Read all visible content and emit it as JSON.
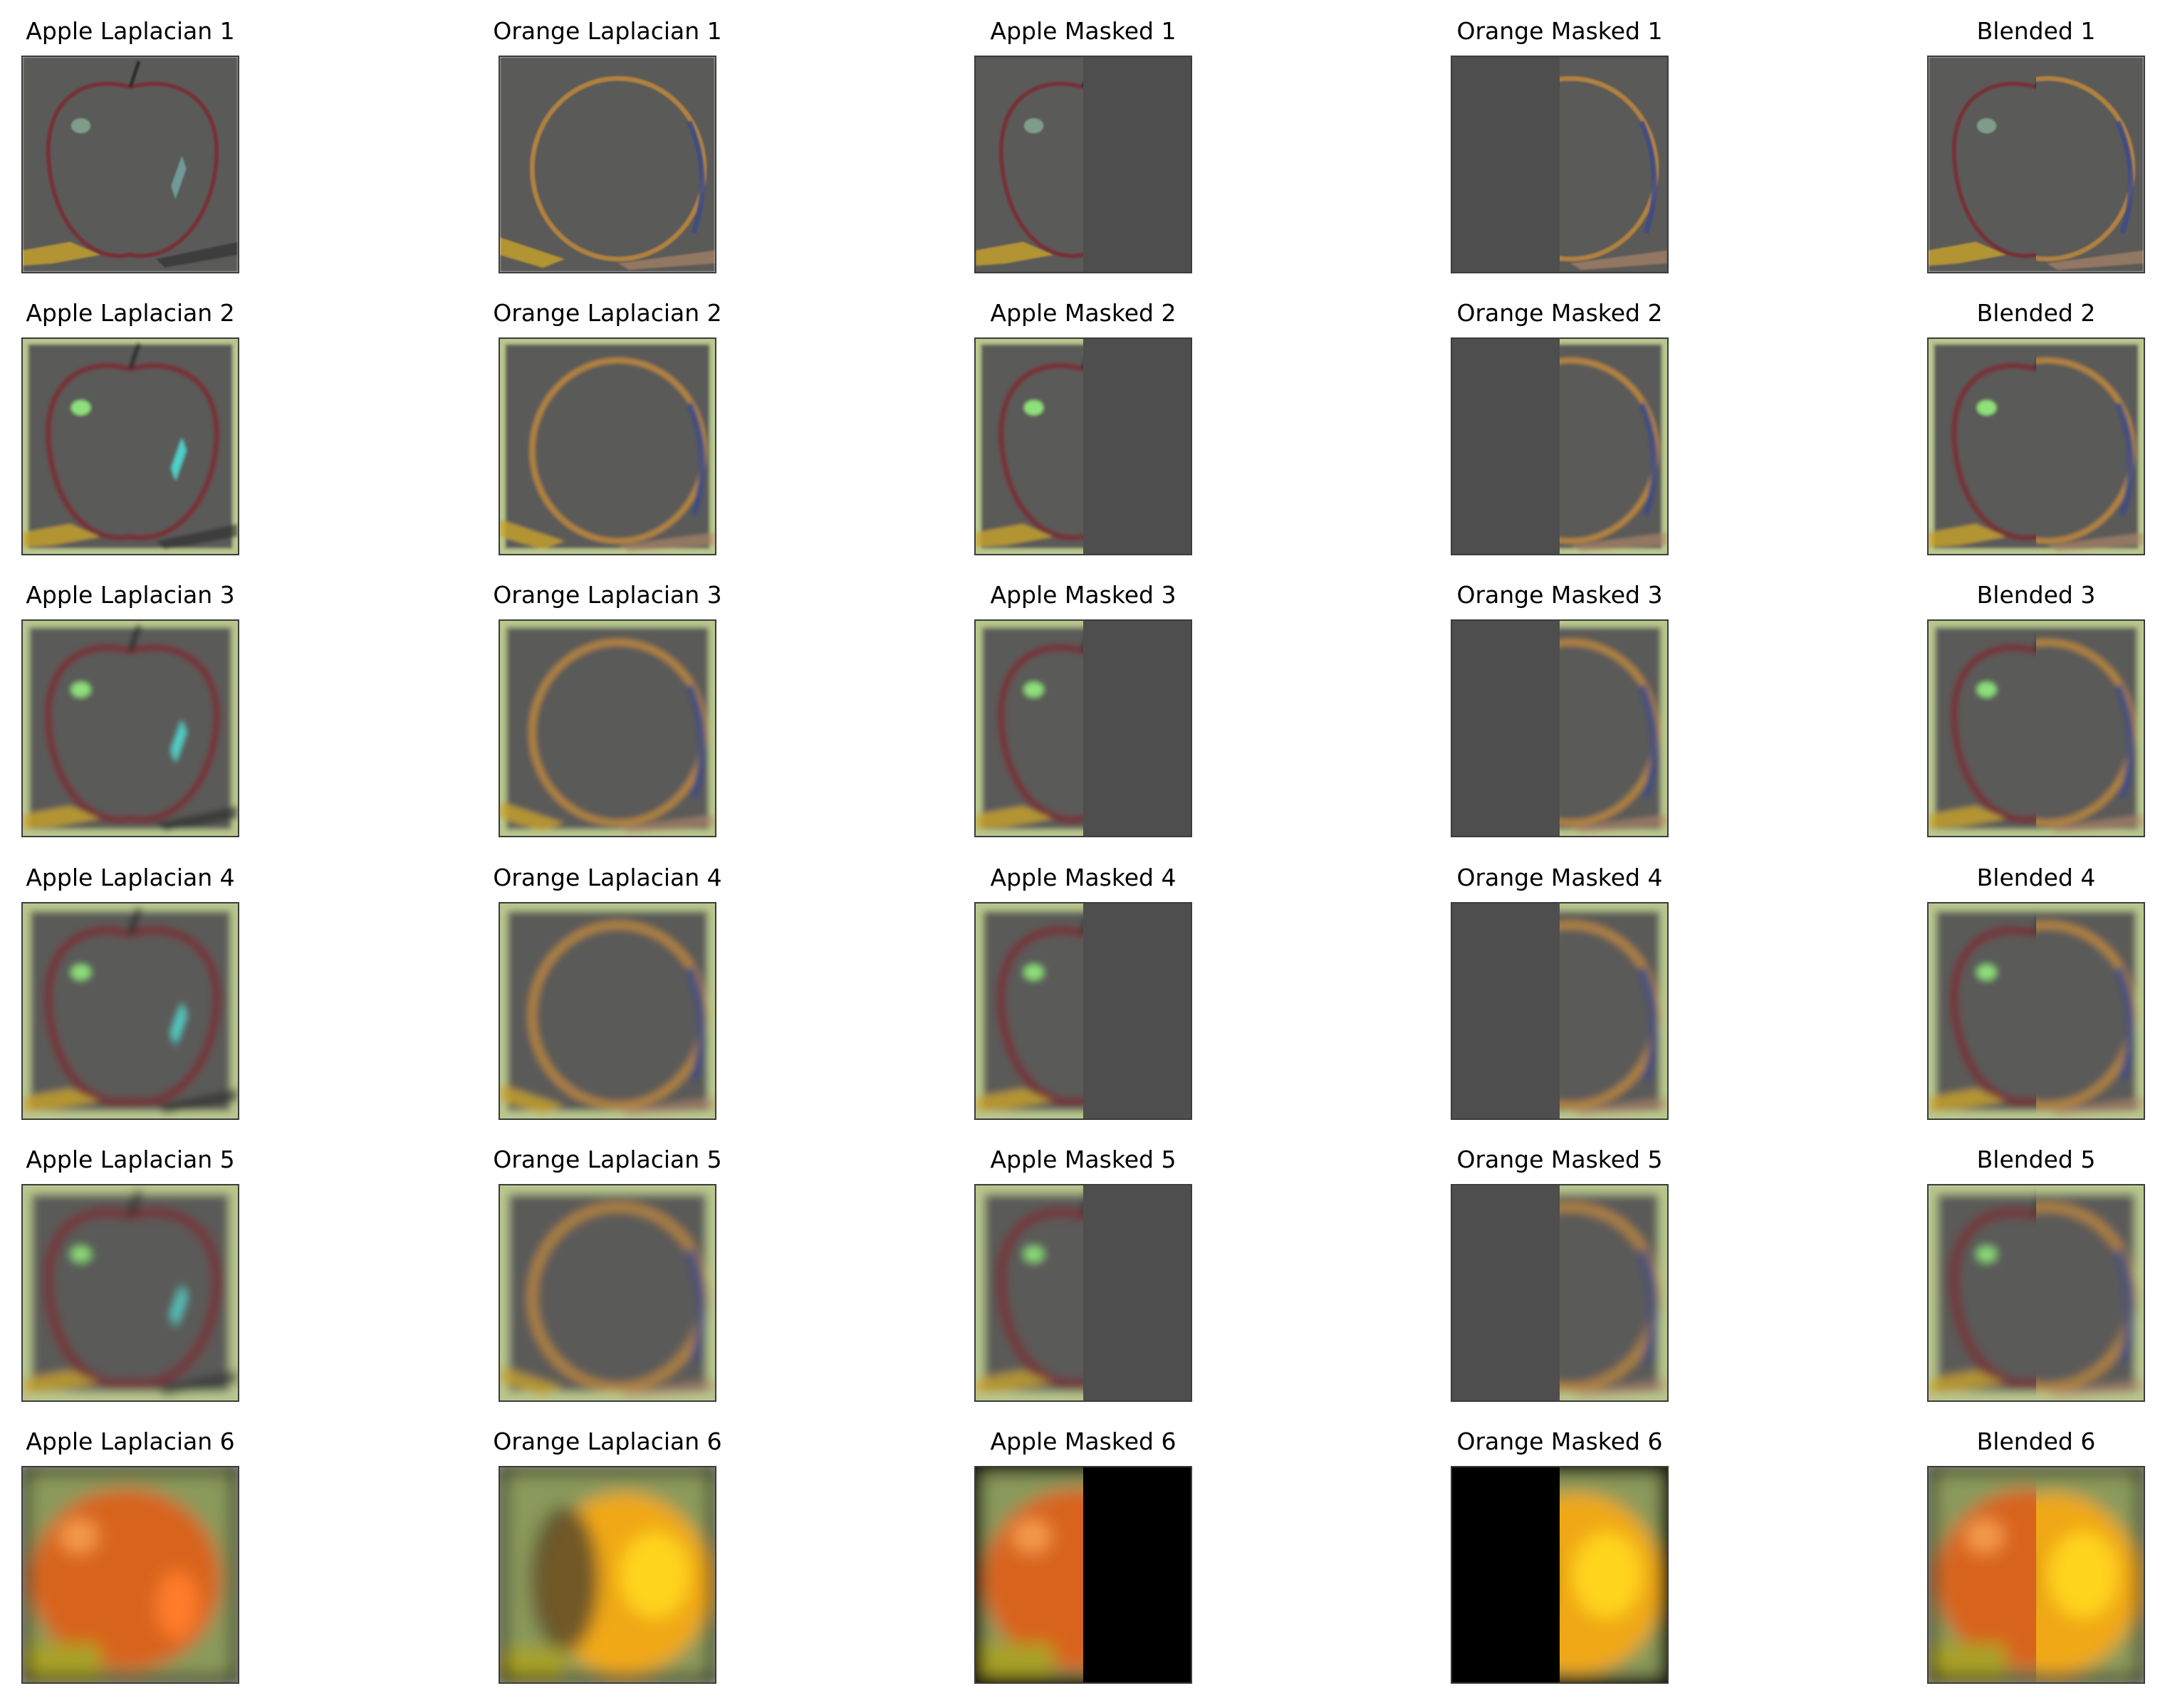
{
  "figure": {
    "rows": [
      {
        "level": 1,
        "titles": [
          "Apple Laplacian 1",
          "Orange Laplacian 1",
          "Apple Masked 1",
          "Orange Masked 1",
          "Blended 1"
        ]
      },
      {
        "level": 2,
        "titles": [
          "Apple Laplacian 2",
          "Orange Laplacian 2",
          "Apple Masked 2",
          "Orange Masked 2",
          "Blended 2"
        ]
      },
      {
        "level": 3,
        "titles": [
          "Apple Laplacian 3",
          "Orange Laplacian 3",
          "Apple Masked 3",
          "Orange Masked 3",
          "Blended 3"
        ]
      },
      {
        "level": 4,
        "titles": [
          "Apple Laplacian 4",
          "Orange Laplacian 4",
          "Apple Masked 4",
          "Orange Masked 4",
          "Blended 4"
        ]
      },
      {
        "level": 5,
        "titles": [
          "Apple Laplacian 5",
          "Orange Laplacian 5",
          "Apple Masked 5",
          "Orange Masked 5",
          "Blended 5"
        ]
      },
      {
        "level": 6,
        "titles": [
          "Apple Laplacian 6",
          "Orange Laplacian 6",
          "Apple Masked 6",
          "Orange Masked 6",
          "Blended 6"
        ]
      }
    ],
    "columns": [
      "apple-laplacian",
      "orange-laplacian",
      "apple-masked",
      "orange-masked",
      "blended"
    ],
    "colors": {
      "laplacian_gray": "#5a5a58",
      "masked_fill_gray": "#4e4e4e",
      "apple_highlight": "#8fe07a",
      "apple_spot": "#4fd0c8",
      "apple_edge": "#7a2b34",
      "orange_edge": "#c08a38",
      "apple_base": "#d8641c",
      "orange_base": "#f0a818",
      "orange_core": "#ffd41a",
      "background_green": "#8a9a5c",
      "masked_black": "#000000"
    }
  }
}
